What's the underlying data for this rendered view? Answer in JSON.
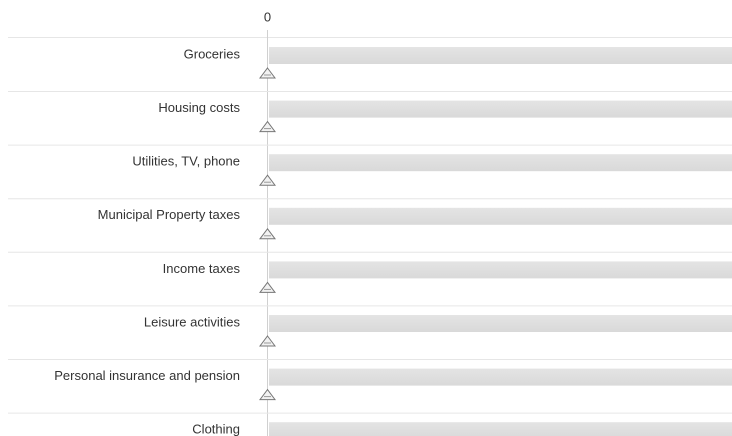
{
  "scale": {
    "ticks": [
      0
    ]
  },
  "rows": [
    {
      "label": "Groceries",
      "value": 0
    },
    {
      "label": "Housing costs",
      "value": 0
    },
    {
      "label": "Utilities, TV, phone",
      "value": 0
    },
    {
      "label": "Municipal Property taxes",
      "value": 0
    },
    {
      "label": "Income taxes",
      "value": 0
    },
    {
      "label": "Leisure activities",
      "value": 0
    },
    {
      "label": "Personal insurance and pension",
      "value": 0
    },
    {
      "label": "Clothing",
      "value": 0
    }
  ]
}
